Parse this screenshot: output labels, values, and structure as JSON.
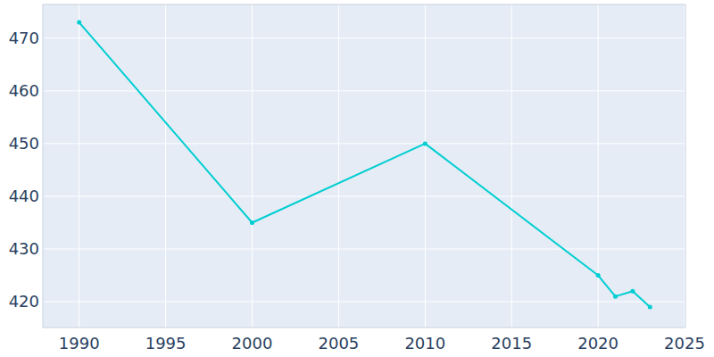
{
  "chart_data": {
    "type": "line",
    "x": [
      1990,
      2000,
      2010,
      2020,
      2021,
      2022,
      2023
    ],
    "values": [
      473,
      435,
      450,
      425,
      421,
      422,
      419
    ],
    "color": "#00ced1",
    "marker": "circle",
    "xlim": [
      1987.9,
      2025.05
    ],
    "xticks": [
      1990,
      1995,
      2000,
      2005,
      2010,
      2015,
      2020,
      2025
    ],
    "ylim": [
      415.1,
      476.4
    ],
    "yticks": [
      420,
      430,
      440,
      450,
      460,
      470
    ],
    "grid": true
  }
}
